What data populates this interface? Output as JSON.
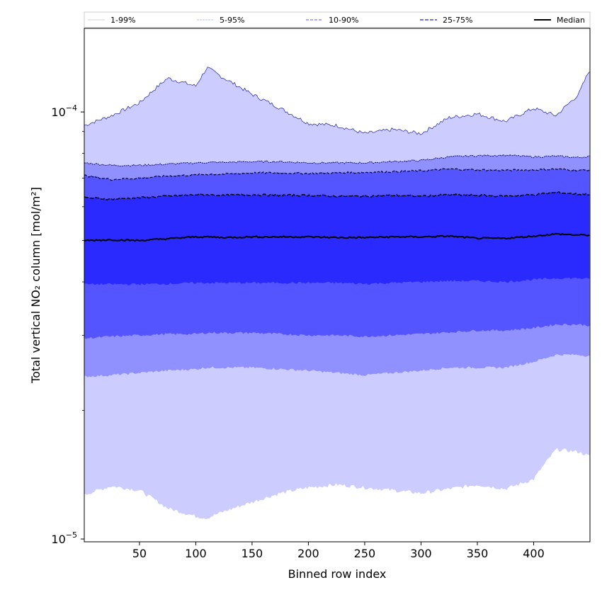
{
  "chart_data": {
    "type": "area",
    "xlabel": "Binned row index",
    "ylabel": "Total vertical NO₂ column [mol/m²]",
    "yscale": "log",
    "xlim": [
      1,
      450
    ],
    "ylim": [
      9.85e-06,
      0.000157
    ],
    "x_ticks": [
      50,
      100,
      150,
      200,
      250,
      300,
      350,
      400
    ],
    "y_ticks": [
      {
        "value": 1e-05,
        "base": "10",
        "exp": "−5"
      },
      {
        "value": 0.0001,
        "base": "10",
        "exp": "−4"
      }
    ],
    "x": [
      1,
      25,
      50,
      75,
      100,
      110,
      125,
      150,
      175,
      200,
      225,
      250,
      275,
      300,
      325,
      350,
      375,
      400,
      420,
      440,
      450
    ],
    "bands": [
      {
        "name": "1-99%",
        "color": "#ccccff",
        "line_color": "#000099",
        "upper": [
          9.3e-05,
          9.8e-05,
          0.000105,
          0.00012,
          0.000115,
          0.000127,
          0.00012,
          0.00011,
          0.000102,
          9.4e-05,
          9.3e-05,
          8.9e-05,
          9.1e-05,
          8.9e-05,
          9.7e-05,
          9.9e-05,
          9.5e-05,
          0.000102,
          9.8e-05,
          0.00011,
          0.000126
        ],
        "lower": [
          1.27e-05,
          1.33e-05,
          1.3e-05,
          1.18e-05,
          1.13e-05,
          1.12e-05,
          1.16e-05,
          1.22e-05,
          1.28e-05,
          1.32e-05,
          1.34e-05,
          1.32e-05,
          1.3e-05,
          1.28e-05,
          1.31e-05,
          1.34e-05,
          1.31e-05,
          1.38e-05,
          1.62e-05,
          1.6e-05,
          1.56e-05
        ]
      },
      {
        "name": "5-95%",
        "color": "#9090ff",
        "line_color": "#000066",
        "upper": [
          7.6e-05,
          7.5e-05,
          7.5e-05,
          7.55e-05,
          7.6e-05,
          7.62e-05,
          7.62e-05,
          7.65e-05,
          7.65e-05,
          7.6e-05,
          7.6e-05,
          7.6e-05,
          7.65e-05,
          7.7e-05,
          7.85e-05,
          7.9e-05,
          7.92e-05,
          7.85e-05,
          7.88e-05,
          7.82e-05,
          7.88e-05
        ],
        "lower": [
          2.4e-05,
          2.42e-05,
          2.45e-05,
          2.48e-05,
          2.5e-05,
          2.52e-05,
          2.52e-05,
          2.52e-05,
          2.5e-05,
          2.48e-05,
          2.45e-05,
          2.42e-05,
          2.45e-05,
          2.48e-05,
          2.52e-05,
          2.52e-05,
          2.52e-05,
          2.6e-05,
          2.7e-05,
          2.7e-05,
          2.68e-05
        ]
      },
      {
        "name": "10-90%",
        "color": "#5555ff",
        "line_color": "#000033",
        "upper": [
          7.1e-05,
          6.95e-05,
          7e-05,
          7.08e-05,
          7.12e-05,
          7.15e-05,
          7.15e-05,
          7.2e-05,
          7.2e-05,
          7.18e-05,
          7.2e-05,
          7.22e-05,
          7.25e-05,
          7.28e-05,
          7.35e-05,
          7.32e-05,
          7.3e-05,
          7.32e-05,
          7.35e-05,
          7.3e-05,
          7.32e-05
        ],
        "lower": [
          2.95e-05,
          2.98e-05,
          3e-05,
          3.02e-05,
          3.02e-05,
          3.04e-05,
          3.04e-05,
          3.04e-05,
          3.02e-05,
          3e-05,
          3e-05,
          2.98e-05,
          3e-05,
          3.02e-05,
          3.05e-05,
          3.08e-05,
          3.08e-05,
          3.12e-05,
          3.18e-05,
          3.18e-05,
          3.16e-05
        ]
      },
      {
        "name": "25-75%",
        "color": "#2a2aff",
        "line_color": "#000000",
        "upper": [
          6.3e-05,
          6.25e-05,
          6.3e-05,
          6.35e-05,
          6.4e-05,
          6.4e-05,
          6.38e-05,
          6.4e-05,
          6.38e-05,
          6.38e-05,
          6.35e-05,
          6.35e-05,
          6.38e-05,
          6.35e-05,
          6.4e-05,
          6.38e-05,
          6.35e-05,
          6.4e-05,
          6.48e-05,
          6.42e-05,
          6.42e-05
        ],
        "lower": [
          3.95e-05,
          3.95e-05,
          3.95e-05,
          3.96e-05,
          3.98e-05,
          3.98e-05,
          3.98e-05,
          3.98e-05,
          3.98e-05,
          3.98e-05,
          3.98e-05,
          3.96e-05,
          3.98e-05,
          4e-05,
          4.02e-05,
          4.02e-05,
          4e-05,
          4.05e-05,
          4.08e-05,
          4.08e-05,
          4.06e-05
        ]
      }
    ],
    "median": {
      "name": "Median",
      "color": "#000000",
      "values": [
        5e-05,
        5.02e-05,
        5e-05,
        5.05e-05,
        5.1e-05,
        5.1e-05,
        5.08e-05,
        5.1e-05,
        5.1e-05,
        5.1e-05,
        5.08e-05,
        5.08e-05,
        5.1e-05,
        5.1e-05,
        5.12e-05,
        5.06e-05,
        5.06e-05,
        5.12e-05,
        5.18e-05,
        5.15e-05,
        5.15e-05
      ]
    },
    "legend": {
      "placement": "top",
      "entries": [
        {
          "label": "1-99%",
          "color": "#c8c8c8",
          "style": "thin"
        },
        {
          "label": "5-95%",
          "color": "#aaaadd",
          "style": "dashed-thin"
        },
        {
          "label": "10-90%",
          "color": "#7777ee",
          "style": "dashed"
        },
        {
          "label": "25-75%",
          "color": "#4444dd",
          "style": "dashed-bold"
        },
        {
          "label": "Median",
          "color": "#000000",
          "style": "solid-bold"
        }
      ]
    },
    "grid": false
  }
}
